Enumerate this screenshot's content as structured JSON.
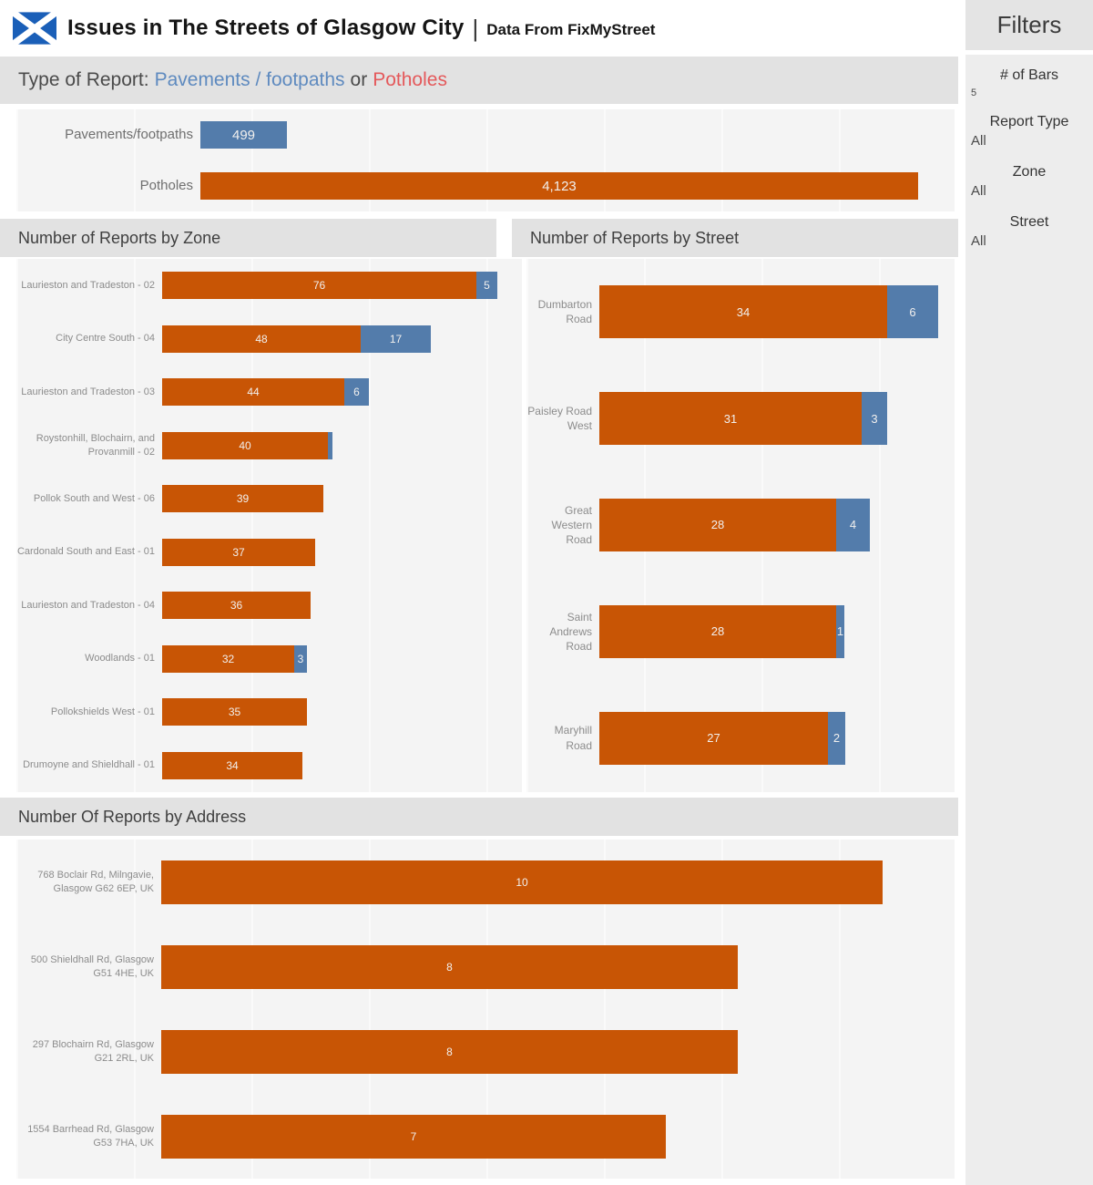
{
  "header": {
    "title": "Issues in The Streets of Glasgow City",
    "separator": "|",
    "subtitle": "Data From FixMyStreet"
  },
  "type_of_report": {
    "prefix": "Type of Report:",
    "pavements": "Pavements / footpaths",
    "or": "or",
    "potholes": "Potholes"
  },
  "sections": {
    "zone_title": "Number of Reports by Zone",
    "street_title": "Number of Reports by Street",
    "address_title": "Number Of Reports by Address"
  },
  "filters": {
    "title": "Filters",
    "items": [
      {
        "label": "# of Bars",
        "value": "5"
      },
      {
        "label": "Report Type",
        "value": "All"
      },
      {
        "label": "Zone",
        "value": "All"
      },
      {
        "label": "Street",
        "value": "All"
      }
    ]
  },
  "colors": {
    "potholes": "#C85505",
    "pavements": "#537CAB",
    "pavements_link": "#5E8ABF",
    "potholes_link": "#E4595B",
    "flag_blue": "#1A5FB8"
  },
  "chart_data": [
    {
      "id": "report_type_totals",
      "type": "bar",
      "title": "Type of Report: Pavements / footpaths or Potholes",
      "xlim": [
        0,
        4330
      ],
      "legend": [
        "Pavements/footpaths",
        "Potholes"
      ],
      "rows": [
        {
          "category": "Pavements/footpaths",
          "segments": [
            {
              "series": "pavements",
              "value": 499,
              "label": "499"
            }
          ]
        },
        {
          "category": "Potholes",
          "segments": [
            {
              "series": "potholes",
              "value": 4123,
              "label": "4,123"
            }
          ]
        }
      ]
    },
    {
      "id": "reports_by_zone",
      "type": "stacked-bar",
      "title": "Number of Reports by Zone",
      "xlim": [
        0,
        87
      ],
      "series_names": [
        "Potholes",
        "Pavements/footpaths"
      ],
      "rows": [
        {
          "category": "Laurieston and Tradeston - 02",
          "segments": [
            {
              "series": "potholes",
              "value": 76,
              "label": "76"
            },
            {
              "series": "pavements",
              "value": 5,
              "label": "5"
            }
          ]
        },
        {
          "category": "City Centre South - 04",
          "segments": [
            {
              "series": "potholes",
              "value": 48,
              "label": "48"
            },
            {
              "series": "pavements",
              "value": 17,
              "label": "17"
            }
          ]
        },
        {
          "category": "Laurieston and Tradeston - 03",
          "segments": [
            {
              "series": "potholes",
              "value": 44,
              "label": "44"
            },
            {
              "series": "pavements",
              "value": 6,
              "label": "6"
            }
          ]
        },
        {
          "category": "Roystonhill, Blochairn, and Provanmill - 02",
          "segments": [
            {
              "series": "potholes",
              "value": 40,
              "label": "40"
            },
            {
              "series": "pavements",
              "value": 1,
              "label": ""
            }
          ]
        },
        {
          "category": "Pollok South and West - 06",
          "segments": [
            {
              "series": "potholes",
              "value": 39,
              "label": "39"
            }
          ]
        },
        {
          "category": "Cardonald South and East - 01",
          "segments": [
            {
              "series": "potholes",
              "value": 37,
              "label": "37"
            }
          ]
        },
        {
          "category": "Laurieston and Tradeston - 04",
          "segments": [
            {
              "series": "potholes",
              "value": 36,
              "label": "36"
            }
          ]
        },
        {
          "category": "Woodlands - 01",
          "segments": [
            {
              "series": "potholes",
              "value": 32,
              "label": "32"
            },
            {
              "series": "pavements",
              "value": 3,
              "label": "3"
            }
          ]
        },
        {
          "category": "Pollokshields West - 01",
          "segments": [
            {
              "series": "potholes",
              "value": 35,
              "label": "35"
            }
          ]
        },
        {
          "category": "Drumoyne and Shieldhall - 01",
          "segments": [
            {
              "series": "potholes",
              "value": 34,
              "label": "34"
            }
          ]
        }
      ]
    },
    {
      "id": "reports_by_street",
      "type": "stacked-bar",
      "title": "Number of Reports by Street",
      "xlim": [
        0,
        42
      ],
      "series_names": [
        "Potholes",
        "Pavements/footpaths"
      ],
      "rows": [
        {
          "category": "Dumbarton Road",
          "segments": [
            {
              "series": "potholes",
              "value": 34,
              "label": "34"
            },
            {
              "series": "pavements",
              "value": 6,
              "label": "6"
            }
          ]
        },
        {
          "category": "Paisley Road West",
          "segments": [
            {
              "series": "potholes",
              "value": 31,
              "label": "31"
            },
            {
              "series": "pavements",
              "value": 3,
              "label": "3"
            }
          ]
        },
        {
          "category": "Great Western Road",
          "segments": [
            {
              "series": "potholes",
              "value": 28,
              "label": "28"
            },
            {
              "series": "pavements",
              "value": 4,
              "label": "4"
            }
          ]
        },
        {
          "category": "Saint Andrews Road",
          "segments": [
            {
              "series": "potholes",
              "value": 28,
              "label": "28"
            },
            {
              "series": "pavements",
              "value": 1,
              "label": "1"
            }
          ]
        },
        {
          "category": "Maryhill Road",
          "segments": [
            {
              "series": "potholes",
              "value": 27,
              "label": "27"
            },
            {
              "series": "pavements",
              "value": 2,
              "label": "2"
            }
          ]
        }
      ]
    },
    {
      "id": "reports_by_address",
      "type": "bar",
      "title": "Number Of Reports by Address",
      "xlim": [
        0,
        11
      ],
      "rows": [
        {
          "category": "768 Boclair Rd, Milngavie, Glasgow G62 6EP, UK",
          "segments": [
            {
              "series": "potholes",
              "value": 10,
              "label": "10"
            }
          ]
        },
        {
          "category": "500 Shieldhall Rd, Glasgow G51 4HE, UK",
          "segments": [
            {
              "series": "potholes",
              "value": 8,
              "label": "8"
            }
          ]
        },
        {
          "category": "297 Blochairn Rd, Glasgow G21 2RL, UK",
          "segments": [
            {
              "series": "potholes",
              "value": 8,
              "label": "8"
            }
          ]
        },
        {
          "category": "1554 Barrhead Rd, Glasgow G53 7HA, UK",
          "segments": [
            {
              "series": "potholes",
              "value": 7,
              "label": "7"
            }
          ]
        }
      ]
    }
  ]
}
